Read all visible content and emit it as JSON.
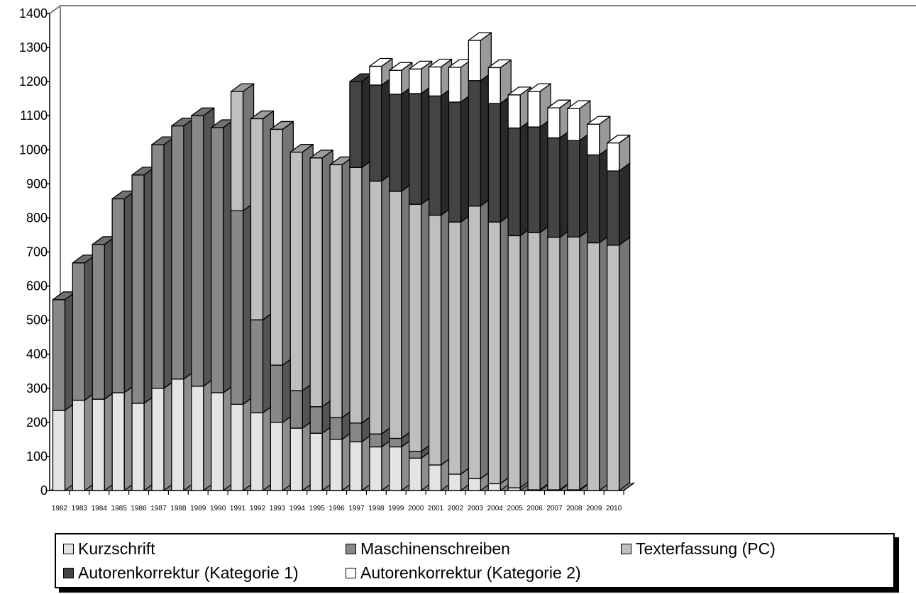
{
  "chart_data": {
    "type": "bar",
    "stacked": true,
    "three_d": true,
    "title": "",
    "xlabel": "",
    "ylabel": "",
    "ylim": [
      0,
      1400
    ],
    "yticks": [
      0,
      100,
      200,
      300,
      400,
      500,
      600,
      700,
      800,
      900,
      1000,
      1100,
      1200,
      1300,
      1400
    ],
    "grid": false,
    "legend_position": "bottom",
    "categories": [
      "1982",
      "1983",
      "1984",
      "1985",
      "1986",
      "1987",
      "1988",
      "1989",
      "1990",
      "1991",
      "1992",
      "1993",
      "1994",
      "1995",
      "1996",
      "1997",
      "1998",
      "1999",
      "2000",
      "2001",
      "2002",
      "2003",
      "2004",
      "2005",
      "2006",
      "2007",
      "2008",
      "2009",
      "2010"
    ],
    "series": [
      {
        "name": "Kurzschrift",
        "color": "#e4e4e4",
        "values": [
          235,
          265,
          268,
          287,
          256,
          300,
          327,
          306,
          287,
          253,
          228,
          200,
          183,
          168,
          150,
          143,
          128,
          128,
          95,
          75,
          48,
          35,
          20,
          8,
          2,
          2,
          2,
          0,
          0
        ]
      },
      {
        "name": "Maschinenschreiben",
        "color": "#888888",
        "values": [
          325,
          403,
          454,
          569,
          670,
          715,
          743,
          794,
          778,
          568,
          273,
          168,
          110,
          78,
          64,
          55,
          38,
          25,
          20,
          0,
          0,
          0,
          0,
          0,
          0,
          0,
          0,
          0,
          0
        ]
      },
      {
        "name": "Texterfassung (PC)",
        "color": "#bfbfbf",
        "values": [
          0,
          0,
          0,
          0,
          0,
          0,
          0,
          0,
          0,
          350,
          590,
          692,
          700,
          730,
          742,
          750,
          742,
          725,
          725,
          733,
          740,
          800,
          768,
          740,
          755,
          741,
          742,
          727,
          720
        ]
      },
      {
        "name": "Autorenkorrektur (Kategorie 1)",
        "color": "#444444",
        "values": [
          0,
          0,
          0,
          0,
          0,
          0,
          0,
          0,
          0,
          0,
          0,
          0,
          0,
          0,
          0,
          252,
          282,
          285,
          325,
          350,
          352,
          368,
          348,
          316,
          310,
          292,
          283,
          258,
          218
        ]
      },
      {
        "name": "Autorenkorrektur (Kategorie 2)",
        "color": "#ffffff",
        "values": [
          0,
          0,
          0,
          0,
          0,
          0,
          0,
          0,
          0,
          0,
          0,
          0,
          0,
          0,
          0,
          0,
          55,
          70,
          72,
          85,
          102,
          118,
          105,
          97,
          104,
          88,
          94,
          90,
          82
        ]
      }
    ]
  }
}
